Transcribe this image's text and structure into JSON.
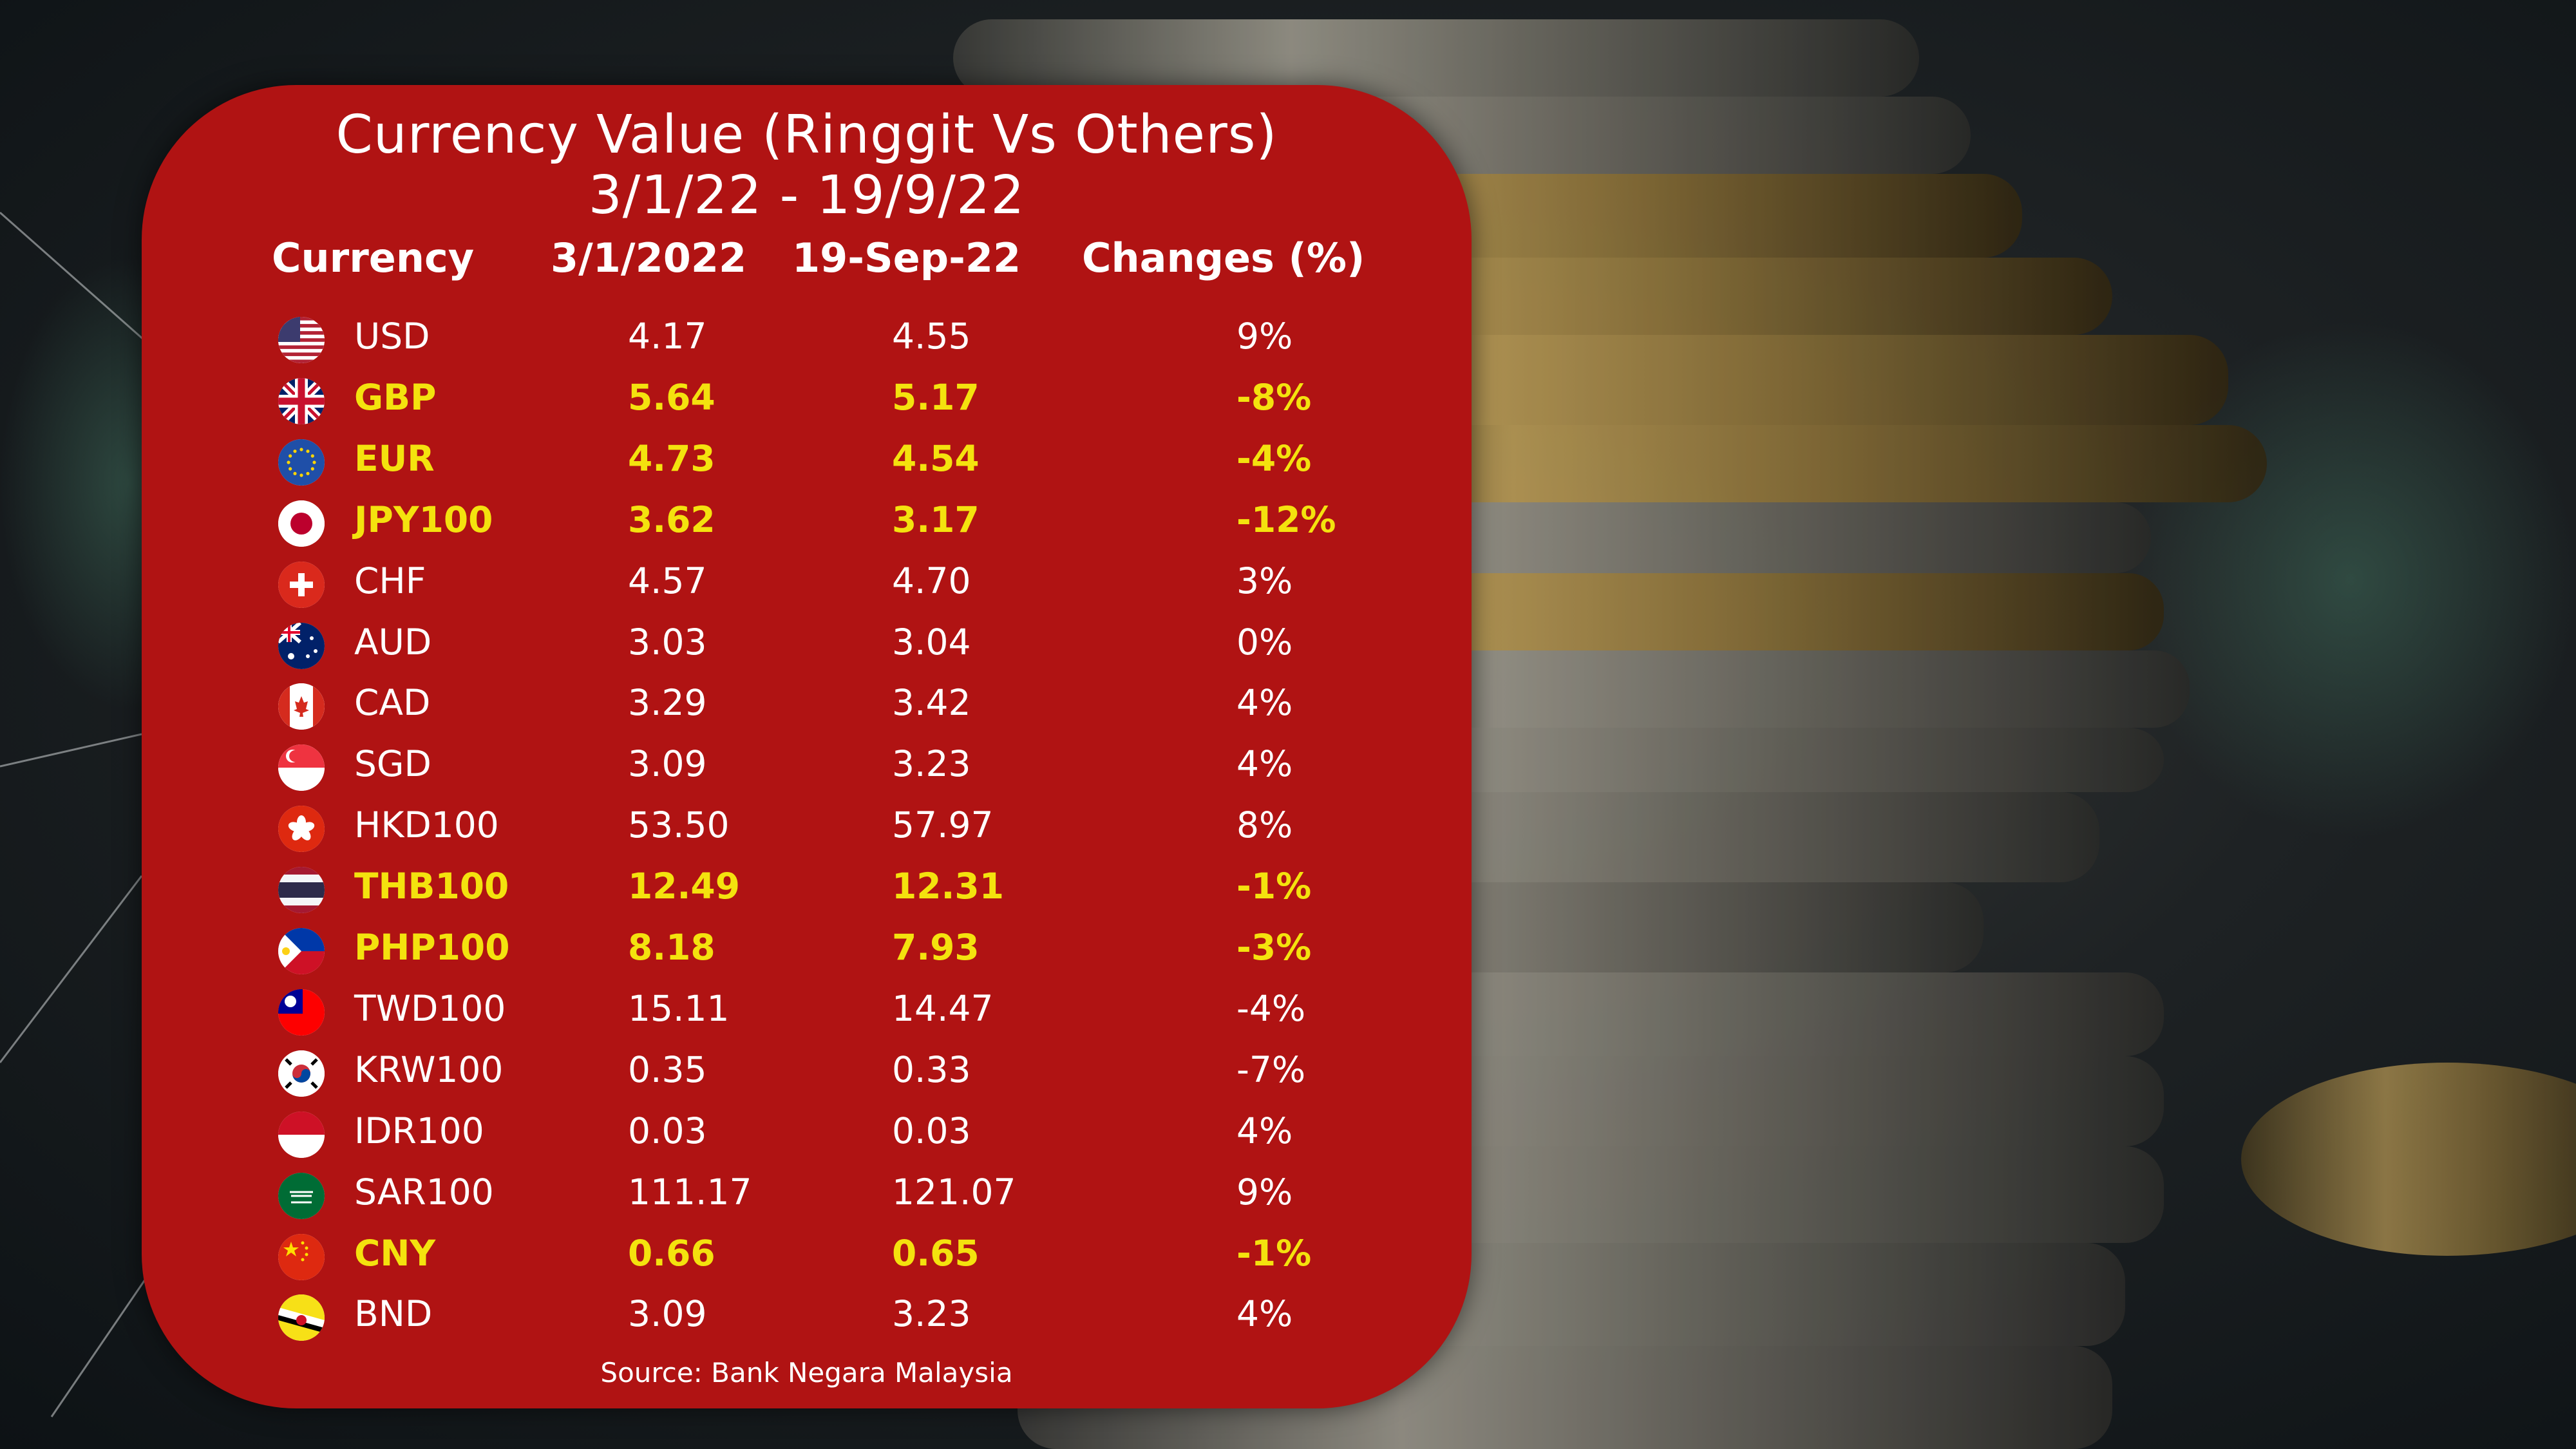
{
  "chart_data": {
    "type": "table",
    "title": "Currency Value (Ringgit Vs Others)",
    "subtitle": "3/1/22 - 19/9/22",
    "columns": [
      "Currency",
      "3/1/2022",
      "19-Sep-22",
      "Changes (%)"
    ],
    "rows": [
      {
        "flag": "us-flag-icon",
        "currency": "USD",
        "v1": "4.17",
        "v2": "4.55",
        "change": "9%",
        "highlight": false
      },
      {
        "flag": "uk-flag-icon",
        "currency": "GBP",
        "v1": "5.64",
        "v2": "5.17",
        "change": "-8%",
        "highlight": true
      },
      {
        "flag": "eu-flag-icon",
        "currency": "EUR",
        "v1": "4.73",
        "v2": "4.54",
        "change": "-4%",
        "highlight": true
      },
      {
        "flag": "japan-flag-icon",
        "currency": "JPY100",
        "v1": "3.62",
        "v2": "3.17",
        "change": "-12%",
        "highlight": true
      },
      {
        "flag": "swiss-flag-icon",
        "currency": "CHF",
        "v1": "4.57",
        "v2": "4.70",
        "change": "3%",
        "highlight": false
      },
      {
        "flag": "australia-flag-icon",
        "currency": "AUD",
        "v1": "3.03",
        "v2": "3.04",
        "change": "0%",
        "highlight": false
      },
      {
        "flag": "canada-flag-icon",
        "currency": "CAD",
        "v1": "3.29",
        "v2": "3.42",
        "change": "4%",
        "highlight": false
      },
      {
        "flag": "singapore-flag-icon",
        "currency": "SGD",
        "v1": "3.09",
        "v2": "3.23",
        "change": "4%",
        "highlight": false
      },
      {
        "flag": "hongkong-flag-icon",
        "currency": "HKD100",
        "v1": "53.50",
        "v2": "57.97",
        "change": "8%",
        "highlight": false
      },
      {
        "flag": "thailand-flag-icon",
        "currency": "THB100",
        "v1": "12.49",
        "v2": "12.31",
        "change": "-1%",
        "highlight": true
      },
      {
        "flag": "philippines-flag-icon",
        "currency": "PHP100",
        "v1": "8.18",
        "v2": "7.93",
        "change": "-3%",
        "highlight": true
      },
      {
        "flag": "taiwan-flag-icon",
        "currency": "TWD100",
        "v1": "15.11",
        "v2": "14.47",
        "change": "-4%",
        "highlight": false
      },
      {
        "flag": "korea-flag-icon",
        "currency": "KRW100",
        "v1": "0.35",
        "v2": "0.33",
        "change": "-7%",
        "highlight": false
      },
      {
        "flag": "indonesia-flag-icon",
        "currency": "IDR100",
        "v1": "0.03",
        "v2": "0.03",
        "change": "4%",
        "highlight": false
      },
      {
        "flag": "saudi-flag-icon",
        "currency": "SAR100",
        "v1": "111.17",
        "v2": "121.07",
        "change": "9%",
        "highlight": false
      },
      {
        "flag": "china-flag-icon",
        "currency": "CNY",
        "v1": "0.66",
        "v2": "0.65",
        "change": "-1%",
        "highlight": true
      },
      {
        "flag": "brunei-flag-icon",
        "currency": "BND",
        "v1": "3.09",
        "v2": "3.23",
        "change": "4%",
        "highlight": false
      }
    ],
    "source": "Source: Bank Negara Malaysia"
  },
  "colors": {
    "panel": "#b01313",
    "highlight_text": "#f4e20e",
    "text": "#ffffff"
  }
}
